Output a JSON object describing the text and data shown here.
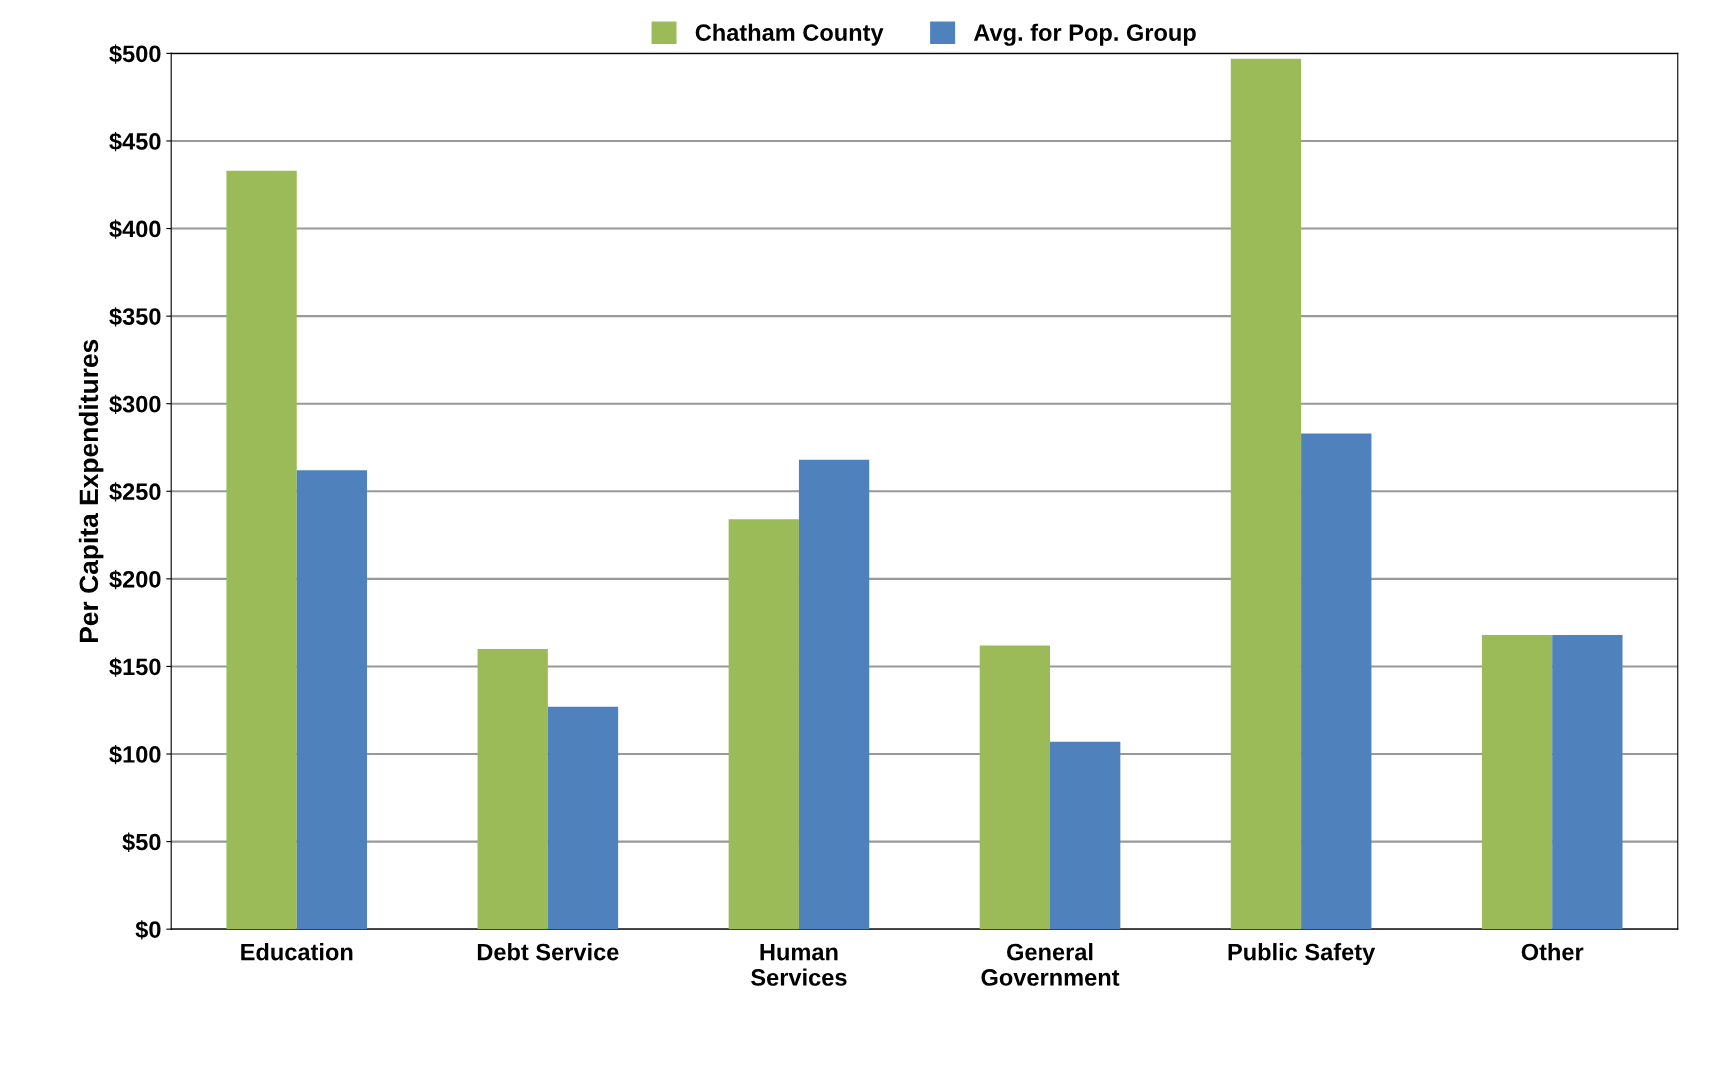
{
  "chart_data": {
    "type": "bar",
    "ylabel": "Per Capita Expenditures",
    "categories": [
      "Education",
      "Debt Service",
      "Human\nServices",
      "General\nGovernment",
      "Public Safety",
      "Other"
    ],
    "series": [
      {
        "name": "Chatham County",
        "color": "#9bbb59",
        "values": [
          433,
          160,
          234,
          162,
          497,
          168
        ]
      },
      {
        "name": "Avg. for Pop. Group",
        "color": "#4f81bd",
        "values": [
          262,
          127,
          268,
          107,
          283,
          168
        ]
      }
    ],
    "ylim": [
      0,
      500
    ],
    "yticks": [
      {
        "value": 0,
        "label": "$0"
      },
      {
        "value": 50,
        "label": "$50"
      },
      {
        "value": 100,
        "label": "$100"
      },
      {
        "value": 150,
        "label": "$150"
      },
      {
        "value": 200,
        "label": "$200"
      },
      {
        "value": 250,
        "label": "$250"
      },
      {
        "value": 300,
        "label": "$300"
      },
      {
        "value": 350,
        "label": "$350"
      },
      {
        "value": 400,
        "label": "$400"
      },
      {
        "value": 450,
        "label": "$450"
      },
      {
        "value": 500,
        "label": "$500"
      }
    ],
    "grid": "y",
    "legend": "top"
  }
}
